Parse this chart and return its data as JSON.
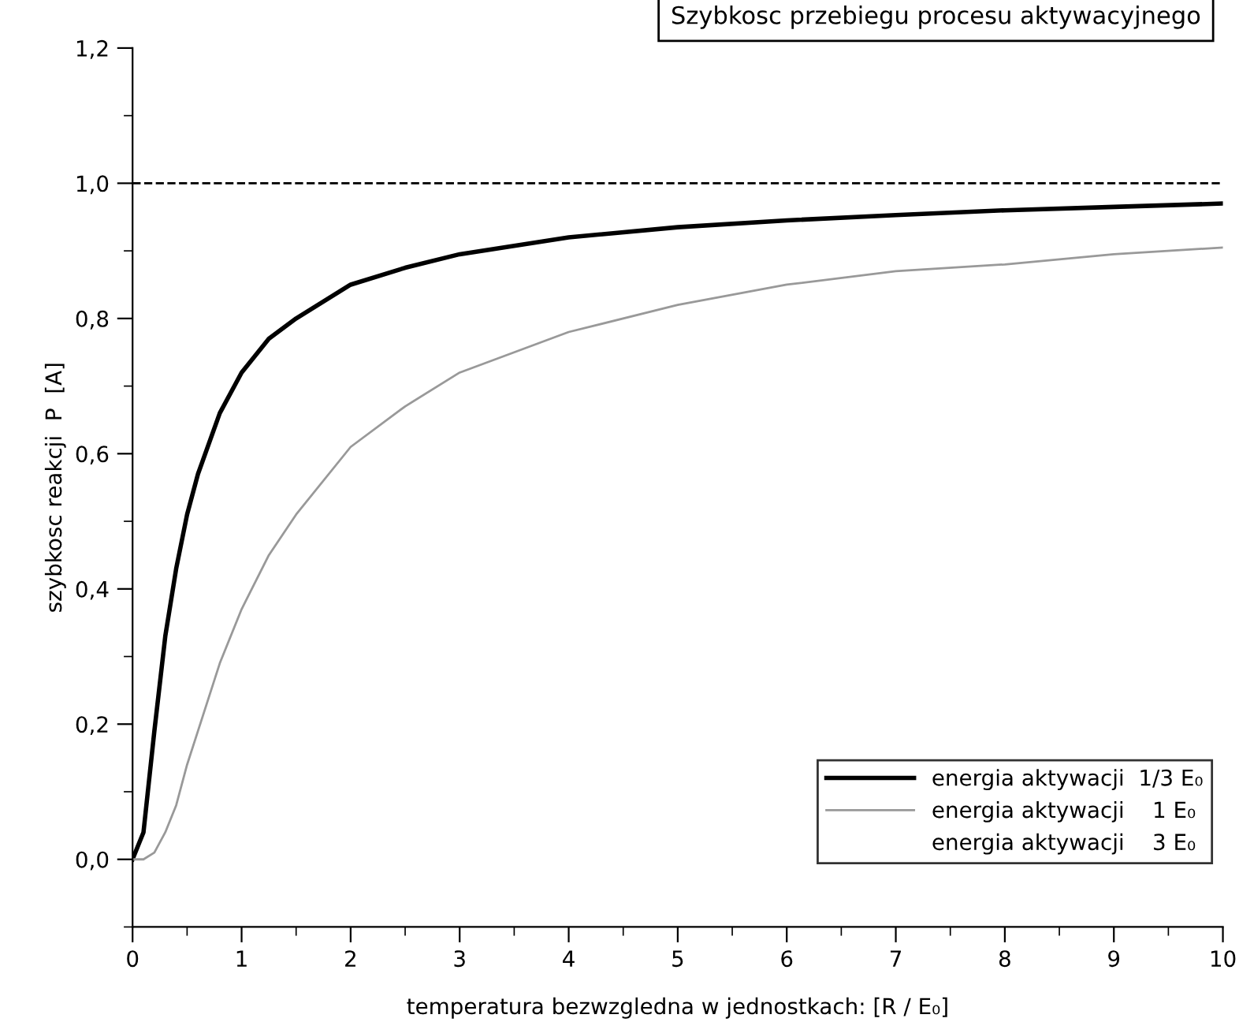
{
  "chart_data": {
    "type": "line",
    "title": "Szybkosc przebiegu procesu aktywacyjnego",
    "xlabel": "temperatura bezwzgledna w jednostkach: [R / E₀]",
    "ylabel": "szybkosc reakcji  P  [A]",
    "x": [
      0,
      0.1,
      0.2,
      0.3,
      0.4,
      0.5,
      0.6,
      0.8,
      1,
      1.25,
      1.5,
      2,
      2.5,
      3,
      4,
      5,
      6,
      7,
      8,
      9,
      10
    ],
    "series": [
      {
        "name": "energia aktywacji  1/3 E₀",
        "color": "#000000",
        "values": [
          0,
          0.04,
          0.19,
          0.33,
          0.43,
          0.51,
          0.57,
          0.66,
          0.72,
          0.77,
          0.8,
          0.85,
          0.875,
          0.895,
          0.92,
          0.935,
          0.945,
          0.953,
          0.96,
          0.965,
          0.97
        ]
      },
      {
        "name": "energia aktywacji    1 E₀",
        "color": "#999999",
        "values": [
          0,
          0,
          0.01,
          0.04,
          0.08,
          0.14,
          0.19,
          0.29,
          0.37,
          0.45,
          0.51,
          0.61,
          0.67,
          0.72,
          0.78,
          0.82,
          0.85,
          0.87,
          0.88,
          0.895,
          0.905
        ]
      },
      {
        "name": "energia aktywacji    3 E₀",
        "values": [
          null,
          null,
          null,
          null,
          null,
          null,
          null,
          null,
          null,
          null,
          null,
          null,
          null,
          null,
          null,
          null,
          null,
          null,
          null,
          null,
          null
        ]
      }
    ],
    "ref_lines": [
      {
        "axis": "y",
        "value": 1.0,
        "label": null,
        "color": "#000000",
        "line_style": "dashed"
      }
    ],
    "xlim": [
      0,
      10
    ],
    "xticks": [
      0,
      1,
      2,
      3,
      4,
      5,
      6,
      7,
      8,
      9,
      10
    ],
    "ylim": [
      -0.1,
      1.2
    ],
    "yticks": [
      {
        "value": 0,
        "label": "0,0"
      },
      {
        "value": 0.2,
        "label": "0,2"
      },
      {
        "value": 0.4,
        "label": "0,4"
      },
      {
        "value": 0.6,
        "label": "0,6"
      },
      {
        "value": 0.8,
        "label": "0,8"
      },
      {
        "value": 1.0,
        "label": "1,0"
      },
      {
        "value": 1.2,
        "label": "1,2"
      }
    ],
    "grid": false,
    "legend": "bottom right",
    "marker": "none",
    "line_style": "solid"
  }
}
